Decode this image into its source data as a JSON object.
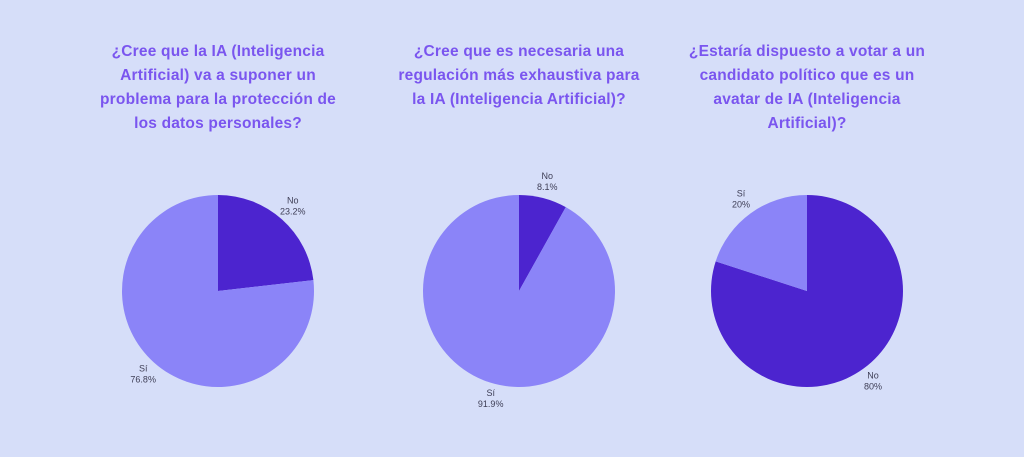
{
  "page": {
    "background_color": "#d6def9",
    "title_color": "#7a55ef",
    "label_color": "#3e3e56"
  },
  "colors": {
    "answer_si": "#8b84f8",
    "answer_no": "#4c24cf"
  },
  "chart_data": [
    {
      "type": "pie",
      "title": "¿Cree que la IA (Inteligencia Artificial) va a suponer un problema para la protección de los datos personales?",
      "start": "top",
      "direction": "clockwise",
      "legend_position": "outside-labels",
      "slices": [
        {
          "label": "No",
          "value": 23.2,
          "display": "23.2%",
          "color": "#4c24cf"
        },
        {
          "label": "Sí",
          "value": 76.8,
          "display": "76.8%",
          "color": "#8b84f8"
        }
      ]
    },
    {
      "type": "pie",
      "title": "¿Cree que es necesaria una regulación más exhaustiva para la IA (Inteligencia Artificial)?",
      "start": "top",
      "direction": "clockwise",
      "legend_position": "outside-labels",
      "slices": [
        {
          "label": "No",
          "value": 8.1,
          "display": "8.1%",
          "color": "#4c24cf"
        },
        {
          "label": "Sí",
          "value": 91.9,
          "display": "91.9%",
          "color": "#8b84f8"
        }
      ]
    },
    {
      "type": "pie",
      "title": "¿Estaría dispuesto a votar a un candidato político que es un avatar de IA (Inteligencia Artificial)?",
      "start": "top",
      "direction": "clockwise",
      "legend_position": "outside-labels",
      "slices": [
        {
          "label": "No",
          "value": 80,
          "display": "80%",
          "color": "#4c24cf"
        },
        {
          "label": "Sí",
          "value": 20,
          "display": "20%",
          "color": "#8b84f8"
        }
      ]
    }
  ]
}
